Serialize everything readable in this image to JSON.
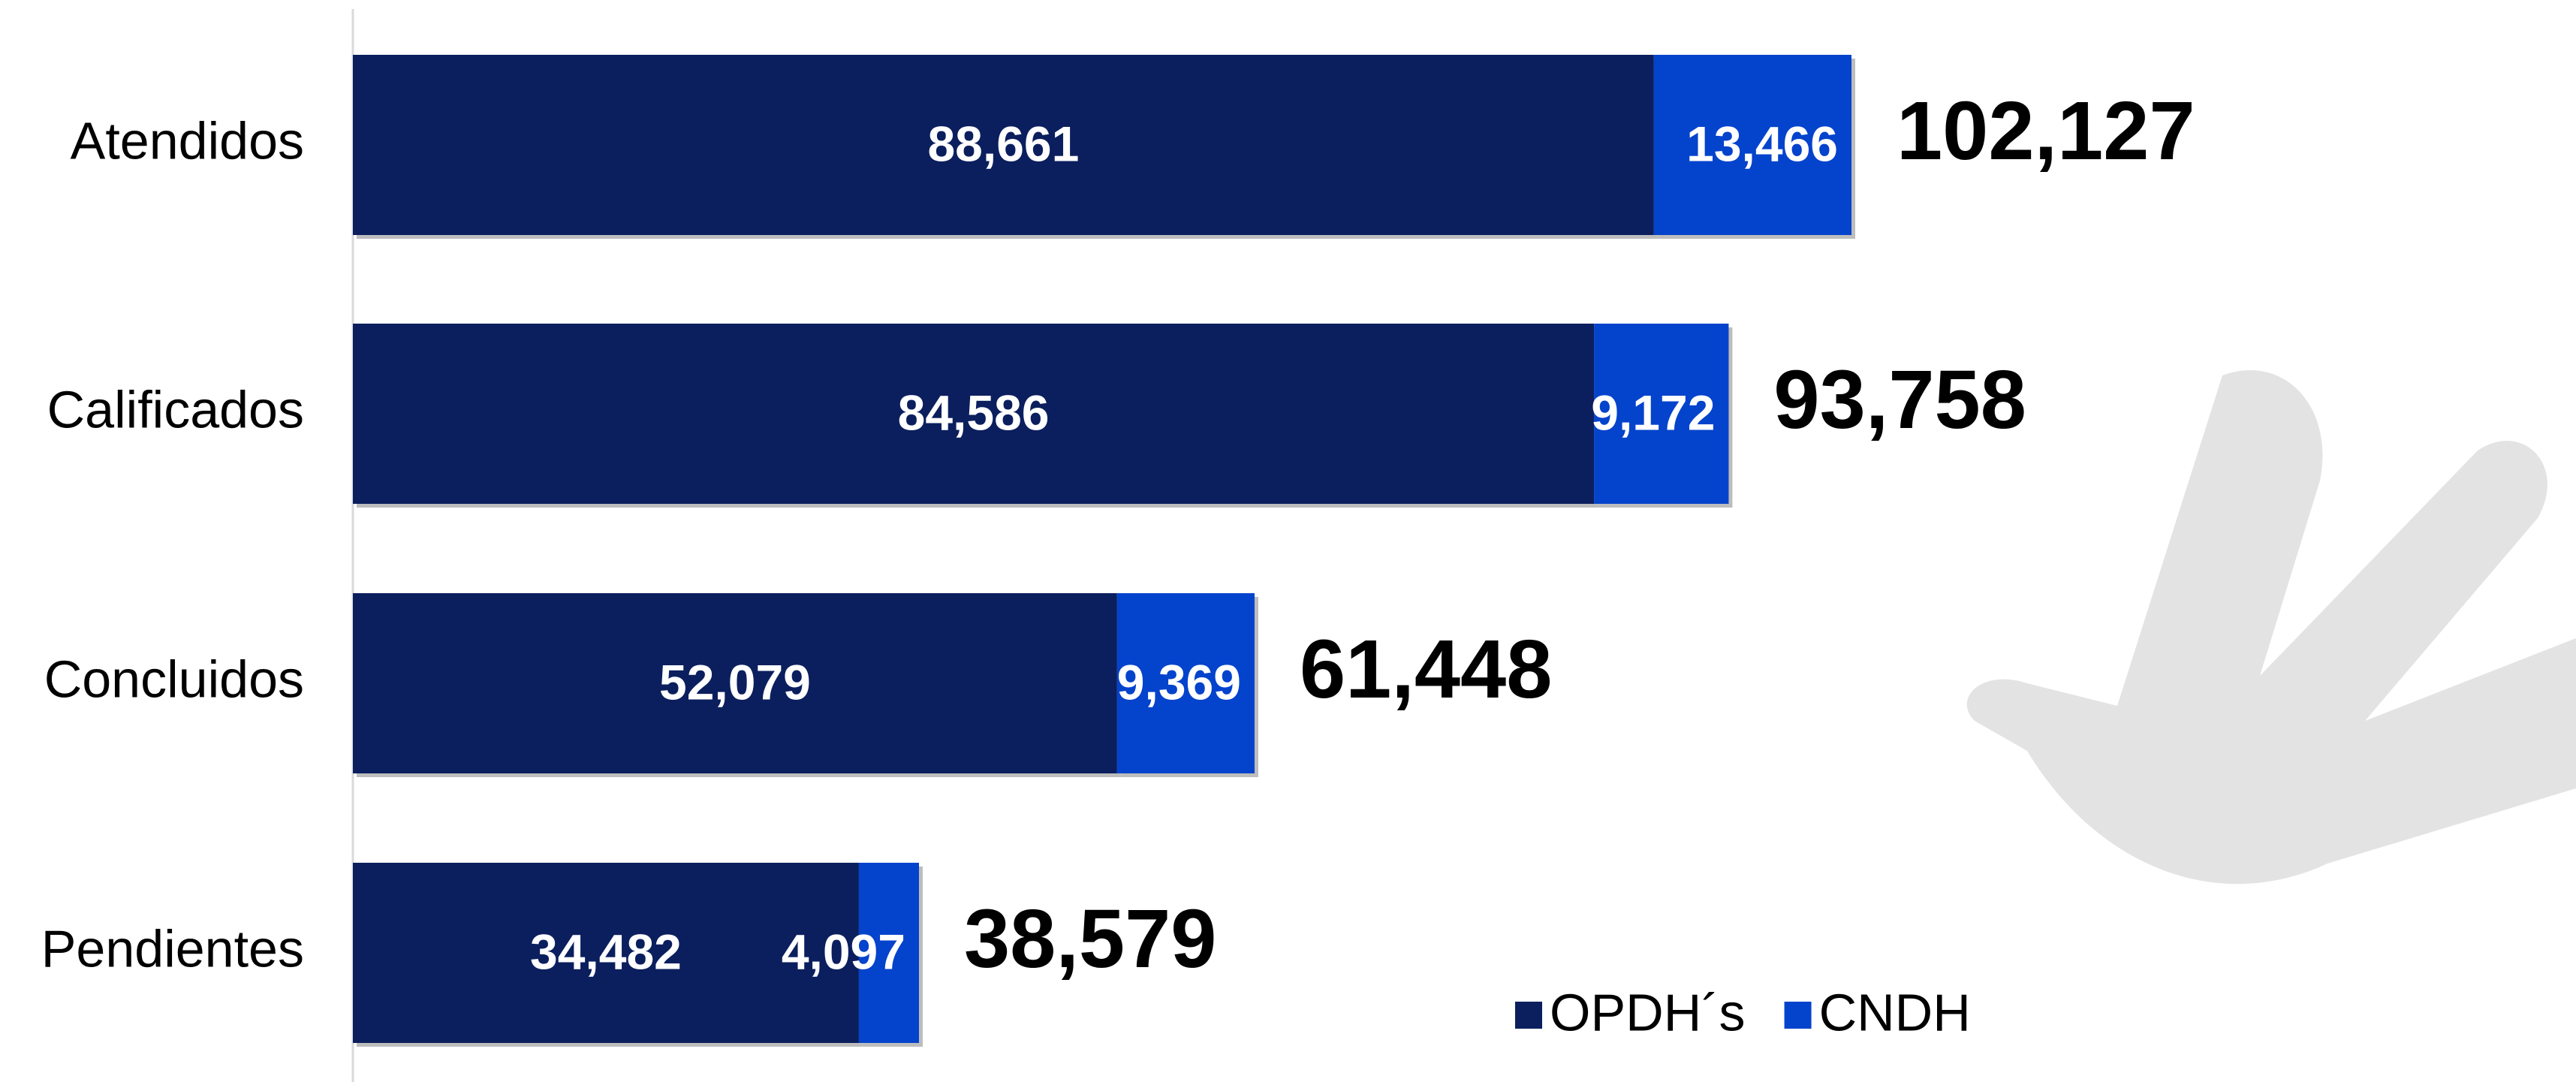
{
  "chart_data": {
    "type": "stacked-bar-horizontal",
    "categories": [
      "Atendidos",
      "Calificados",
      "Concluidos",
      "Pendientes"
    ],
    "series": [
      {
        "name": "OPDH´s",
        "color": "#0b1f5e",
        "values": [
          88661,
          84586,
          52079,
          34482
        ],
        "value_labels": [
          "88,661",
          "84,586",
          "52,079",
          "34,482"
        ]
      },
      {
        "name": "CNDH",
        "color": "#0443cc",
        "values": [
          13466,
          9172,
          9369,
          4097
        ],
        "value_labels": [
          "13,466",
          "9,172",
          "9,369",
          "4,097"
        ]
      }
    ],
    "totals": [
      102127,
      93758,
      61448,
      38579
    ],
    "total_labels": [
      "102,127",
      "93,758",
      "61,448",
      "38,579"
    ],
    "legend": "bottom-right"
  }
}
